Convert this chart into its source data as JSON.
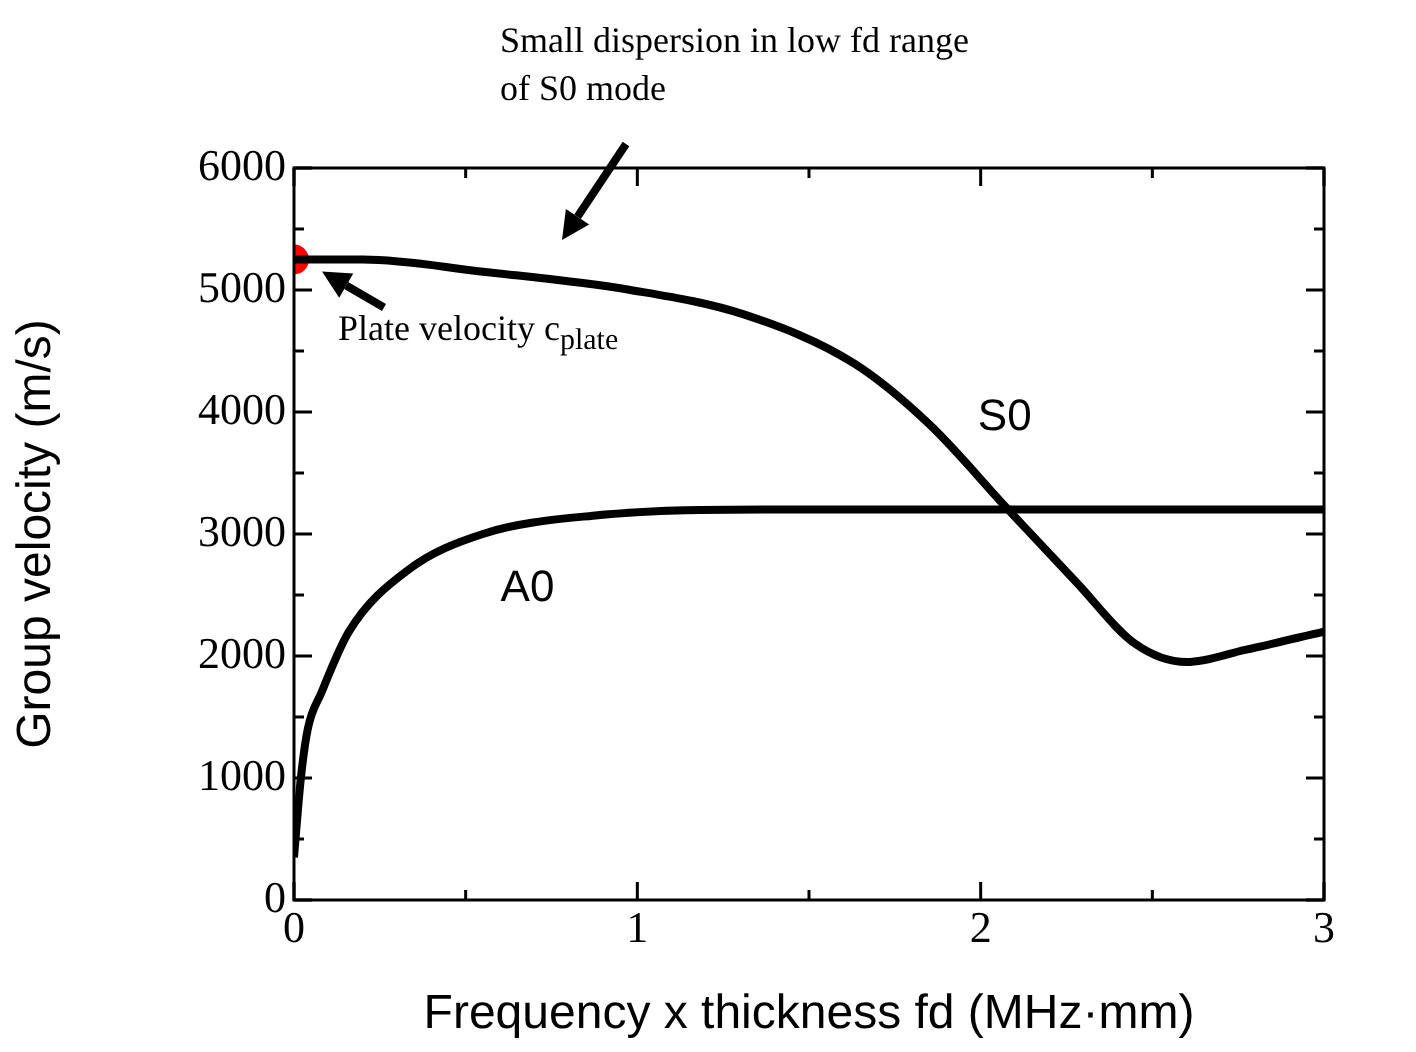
{
  "chart_data": {
    "type": "line",
    "xlabel": "Frequency x thickness fd (MHz·mm)",
    "ylabel": "Group velocity (m/s)",
    "xlim": [
      0,
      3
    ],
    "ylim": [
      0,
      6000
    ],
    "xticks": [
      0,
      {
        "value": 0.5,
        "label": null
      },
      1,
      {
        "value": 1.5,
        "label": null
      },
      2,
      {
        "value": 2.5,
        "label": null
      },
      3
    ],
    "yticks": [
      0,
      {
        "value": 500,
        "label": null
      },
      1000,
      {
        "value": 1500,
        "label": null
      },
      2000,
      {
        "value": 2500,
        "label": null
      },
      3000,
      {
        "value": 3500,
        "label": null
      },
      4000,
      {
        "value": 4500,
        "label": null
      },
      5000,
      {
        "value": 5500,
        "label": null
      },
      6000
    ],
    "grid": false,
    "legend": false,
    "marker": "none",
    "line_style": "solid",
    "series": [
      {
        "name": "S0",
        "color": "#000000",
        "x": [
          0,
          0.2,
          0.55,
          0.98,
          1.31,
          1.63,
          1.85,
          2.08,
          2.28,
          2.45,
          2.6,
          2.77,
          3.0
        ],
        "values": [
          5250,
          5250,
          5150,
          5000,
          4800,
          4400,
          3900,
          3200,
          2600,
          2100,
          1950,
          2050,
          2200
        ]
      },
      {
        "name": "A0",
        "color": "#000000",
        "x": [
          0,
          0.02,
          0.04,
          0.08,
          0.16,
          0.33,
          0.55,
          0.87,
          1.41,
          2.06,
          3.0
        ],
        "values": [
          350,
          1000,
          1400,
          1700,
          2200,
          2700,
          3000,
          3150,
          3200,
          3200,
          3200
        ]
      },
      {
        "type": "scatter",
        "color": "#ff0000",
        "marker": "circle",
        "x": [
          0
        ],
        "values": [
          5250
        ]
      }
    ],
    "annotations": [
      "Small dispersion in low fd range of S0 mode",
      {
        "text": "Plate velocity c$_{plate}$",
        "x": 0,
        "y": 5250
      }
    ]
  }
}
